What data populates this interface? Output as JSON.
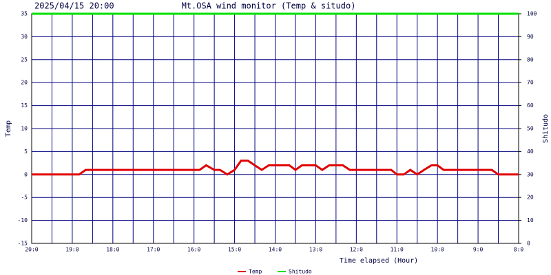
{
  "chart_data": {
    "type": "line",
    "title": "Mt.OSA wind monitor (Temp & situdo)",
    "subtitle": "2025/04/15 20:00",
    "x_label": "Time elapsed (Hour)",
    "y_label": "Temp",
    "y2_label": "Shitudo",
    "x": [
      0,
      1.17,
      1.33,
      4.14,
      4.3,
      4.5,
      4.64,
      4.82,
      5.0,
      5.16,
      5.33,
      5.5,
      5.67,
      5.84,
      6.35,
      6.5,
      6.66,
      7.0,
      7.16,
      7.33,
      7.67,
      7.84,
      8.86,
      9.0,
      9.17,
      9.33,
      9.5,
      9.67,
      9.85,
      10.0,
      10.15,
      11.34,
      11.5,
      12
    ],
    "series": [
      {
        "name": "Temp",
        "color": "#e00000",
        "values": [
          0,
          0,
          1,
          1,
          2,
          1,
          1,
          0,
          1,
          3,
          3,
          2,
          1,
          2,
          2,
          1,
          2,
          2,
          1,
          2,
          2,
          1,
          1,
          0,
          0,
          1,
          0,
          1,
          2,
          2,
          1,
          1,
          0,
          0
        ]
      },
      {
        "name": "Shitudo",
        "color": "#00e000",
        "axis": "y2",
        "values": [
          100,
          100,
          100,
          100,
          100,
          100,
          100,
          100,
          100,
          100,
          100,
          100,
          100,
          100,
          100,
          100,
          100,
          100,
          100,
          100,
          100,
          100,
          100,
          100,
          100,
          100,
          100,
          100,
          100,
          100,
          100,
          100,
          100,
          100
        ]
      }
    ],
    "xlim": [
      0,
      12
    ],
    "xticks": [
      {
        "value": 0,
        "label": "20:0"
      },
      {
        "value": 1,
        "label": "19:0"
      },
      {
        "value": 2,
        "label": "18:0"
      },
      {
        "value": 3,
        "label": "17:0"
      },
      {
        "value": 4,
        "label": "16:0"
      },
      {
        "value": 5,
        "label": "15:0"
      },
      {
        "value": 6,
        "label": "14:0"
      },
      {
        "value": 7,
        "label": "13:0"
      },
      {
        "value": 8,
        "label": "12:0"
      },
      {
        "value": 9,
        "label": "11:0"
      },
      {
        "value": 10,
        "label": "10:0"
      },
      {
        "value": 11,
        "label": "9:0"
      },
      {
        "value": 12,
        "label": "8:0"
      }
    ],
    "ylim": [
      -15,
      35
    ],
    "yticks": [
      -15,
      -10,
      -5,
      0,
      5,
      10,
      15,
      20,
      25,
      30,
      35
    ],
    "y2lim": [
      0,
      100
    ],
    "y2ticks": [
      0,
      10,
      20,
      30,
      40,
      50,
      60,
      70,
      80,
      90,
      100
    ],
    "grid": true,
    "grid_color": "#000080",
    "legend": "bottom"
  }
}
